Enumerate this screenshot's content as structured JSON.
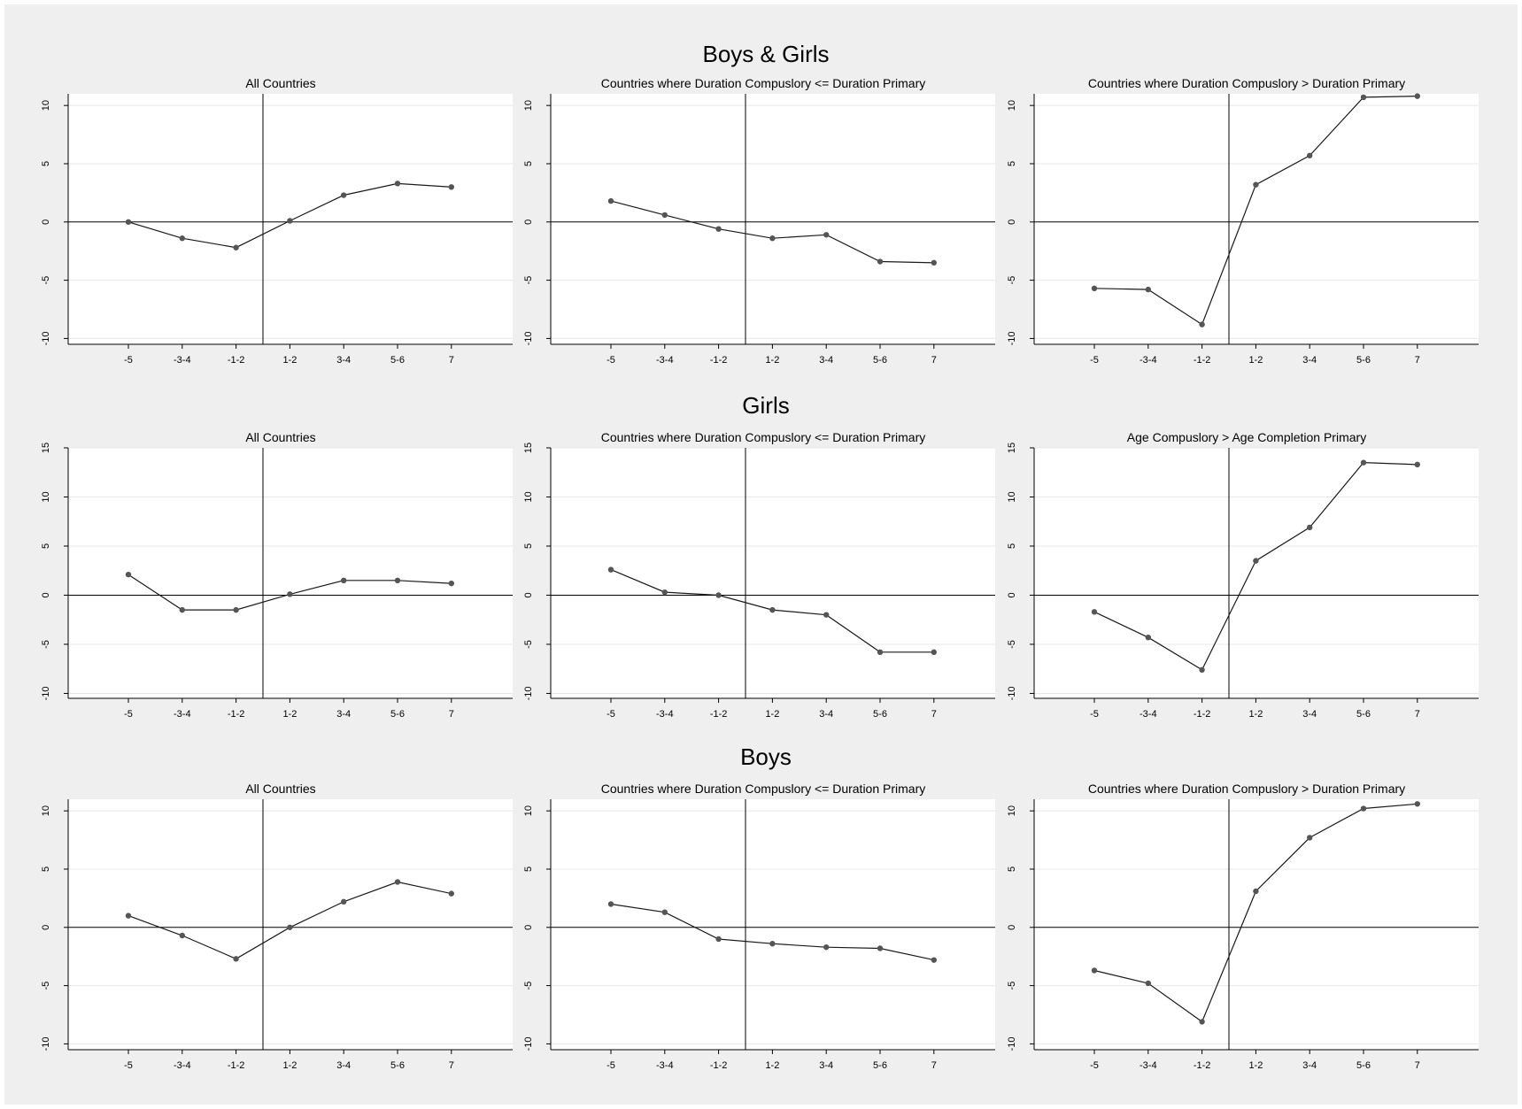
{
  "colors": {
    "background": "#efefef",
    "plot_area": "#ffffff",
    "line": "#1a1a1a",
    "marker": "#555555",
    "gridline": "#e8e8e8",
    "axis": "#000000"
  },
  "rows": [
    {
      "title": "Boys & Girls"
    },
    {
      "title": "Girls"
    },
    {
      "title": "Boys"
    }
  ],
  "chart_data": [
    {
      "type": "line",
      "row": 0,
      "col": 0,
      "title": "All Countries",
      "categories": [
        "-5",
        "-3-4",
        "-1-2",
        "1-2",
        "3-4",
        "5-6",
        "7"
      ],
      "values": [
        0.0,
        -1.4,
        -2.2,
        0.1,
        2.3,
        3.3,
        3.0
      ],
      "ylim": [
        -10.5,
        11
      ],
      "yticks": [
        -10,
        -5,
        0,
        5,
        10
      ],
      "reference_lines": {
        "y": 0,
        "x_between": [
          "-1-2",
          "1-2"
        ]
      },
      "grid": true
    },
    {
      "type": "line",
      "row": 0,
      "col": 1,
      "title": "Countries where Duration Compuslory <= Duration Primary",
      "categories": [
        "-5",
        "-3-4",
        "-1-2",
        "1-2",
        "3-4",
        "5-6",
        "7"
      ],
      "values": [
        1.8,
        0.6,
        -0.6,
        -1.4,
        -1.1,
        -3.4,
        -3.5
      ],
      "ylim": [
        -10.5,
        11
      ],
      "yticks": [
        -10,
        -5,
        0,
        5,
        10
      ],
      "reference_lines": {
        "y": 0,
        "x_between": [
          "-1-2",
          "1-2"
        ]
      },
      "grid": true
    },
    {
      "type": "line",
      "row": 0,
      "col": 2,
      "title": "Countries where Duration Compuslory > Duration Primary",
      "categories": [
        "-5",
        "-3-4",
        "-1-2",
        "1-2",
        "3-4",
        "5-6",
        "7"
      ],
      "values": [
        -5.7,
        -5.8,
        -8.8,
        3.2,
        5.7,
        10.7,
        10.8
      ],
      "ylim": [
        -10.5,
        11
      ],
      "yticks": [
        -10,
        -5,
        0,
        5,
        10
      ],
      "reference_lines": {
        "y": 0,
        "x_between": [
          "-1-2",
          "1-2"
        ]
      },
      "grid": true
    },
    {
      "type": "line",
      "row": 1,
      "col": 0,
      "title": "All Countries",
      "categories": [
        "-5",
        "-3-4",
        "-1-2",
        "1-2",
        "3-4",
        "5-6",
        "7"
      ],
      "values": [
        2.1,
        -1.5,
        -1.5,
        0.1,
        1.5,
        1.5,
        1.2
      ],
      "ylim": [
        -10.5,
        15
      ],
      "yticks": [
        -10,
        -5,
        0,
        5,
        10,
        15
      ],
      "reference_lines": {
        "y": 0,
        "x_between": [
          "-1-2",
          "1-2"
        ]
      },
      "grid": true
    },
    {
      "type": "line",
      "row": 1,
      "col": 1,
      "title": "Countries where Duration Compuslory <= Duration Primary",
      "categories": [
        "-5",
        "-3-4",
        "-1-2",
        "1-2",
        "3-4",
        "5-6",
        "7"
      ],
      "values": [
        2.6,
        0.3,
        0.0,
        -1.5,
        -2.0,
        -5.8,
        -5.8
      ],
      "ylim": [
        -10.5,
        15
      ],
      "yticks": [
        -10,
        -5,
        0,
        5,
        10,
        15
      ],
      "reference_lines": {
        "y": 0,
        "x_between": [
          "-1-2",
          "1-2"
        ]
      },
      "grid": true
    },
    {
      "type": "line",
      "row": 1,
      "col": 2,
      "title": "Age Compuslory > Age Completion Primary",
      "categories": [
        "-5",
        "-3-4",
        "-1-2",
        "1-2",
        "3-4",
        "5-6",
        "7"
      ],
      "values": [
        -1.7,
        -4.3,
        -7.6,
        3.5,
        6.9,
        13.5,
        13.3
      ],
      "ylim": [
        -10.5,
        15
      ],
      "yticks": [
        -10,
        -5,
        0,
        5,
        10,
        15
      ],
      "reference_lines": {
        "y": 0,
        "x_between": [
          "-1-2",
          "1-2"
        ]
      },
      "grid": true
    },
    {
      "type": "line",
      "row": 2,
      "col": 0,
      "title": "All Countries",
      "categories": [
        "-5",
        "-3-4",
        "-1-2",
        "1-2",
        "3-4",
        "5-6",
        "7"
      ],
      "values": [
        1.0,
        -0.7,
        -2.7,
        0.0,
        2.2,
        3.9,
        2.9
      ],
      "ylim": [
        -10.5,
        11
      ],
      "yticks": [
        -10,
        -5,
        0,
        5,
        10
      ],
      "reference_lines": {
        "y": 0,
        "x_between": [
          "-1-2",
          "1-2"
        ]
      },
      "grid": true
    },
    {
      "type": "line",
      "row": 2,
      "col": 1,
      "title": "Countries where Duration Compuslory <= Duration Primary",
      "categories": [
        "-5",
        "-3-4",
        "-1-2",
        "1-2",
        "3-4",
        "5-6",
        "7"
      ],
      "values": [
        2.0,
        1.3,
        -1.0,
        -1.4,
        -1.7,
        -1.8,
        -2.8
      ],
      "ylim": [
        -10.5,
        11
      ],
      "yticks": [
        -10,
        -5,
        0,
        5,
        10
      ],
      "reference_lines": {
        "y": 0,
        "x_between": [
          "-1-2",
          "1-2"
        ]
      },
      "grid": true
    },
    {
      "type": "line",
      "row": 2,
      "col": 2,
      "title": "Countries where Duration Compuslory > Duration Primary",
      "categories": [
        "-5",
        "-3-4",
        "-1-2",
        "1-2",
        "3-4",
        "5-6",
        "7"
      ],
      "values": [
        -3.7,
        -4.8,
        -8.1,
        3.1,
        7.7,
        10.2,
        10.6
      ],
      "ylim": [
        -10.5,
        11
      ],
      "yticks": [
        -10,
        -5,
        0,
        5,
        10
      ],
      "reference_lines": {
        "y": 0,
        "x_between": [
          "-1-2",
          "1-2"
        ]
      },
      "grid": true
    }
  ]
}
